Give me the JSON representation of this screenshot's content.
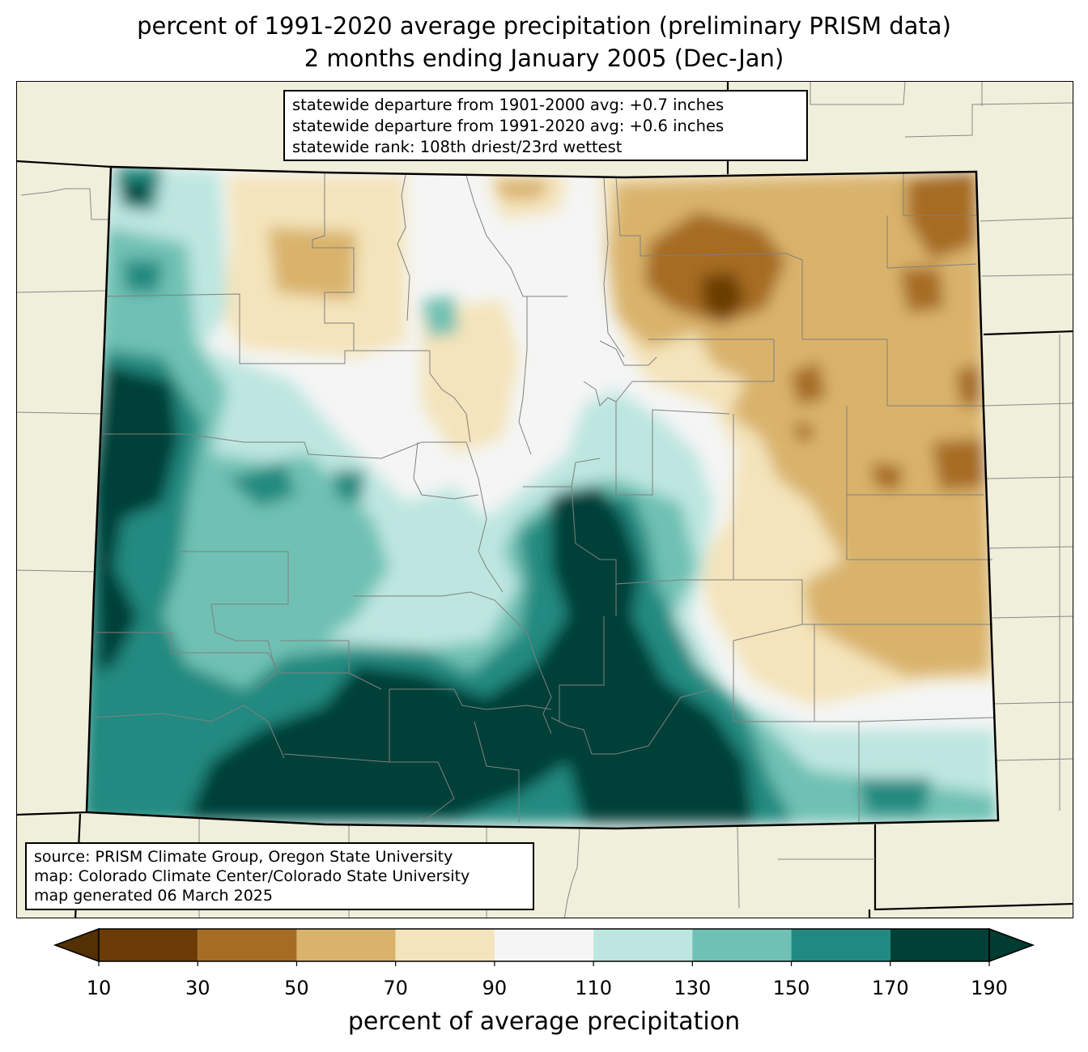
{
  "title": {
    "line1": "percent of 1991-2020 average precipitation (preliminary PRISM data)",
    "line2": "2 months ending January 2005 (Dec-Jan)"
  },
  "stats": {
    "line1": "statewide departure from 1901-2000 avg: +0.7 inches",
    "line2": "statewide departure from 1991-2020 avg: +0.6 inches",
    "line3": "statewide rank: 108th driest/23rd wettest"
  },
  "source": {
    "line1": "source: PRISM Climate Group, Oregon State University",
    "line2": "map: Colorado Climate Center/Colorado State University",
    "line3": "map generated 06 March 2025"
  },
  "colorbar": {
    "label": "percent of average precipitation",
    "ticks": [
      "10",
      "30",
      "50",
      "70",
      "90",
      "110",
      "130",
      "150",
      "170",
      "190"
    ],
    "colors": [
      "#6b3c06",
      "#a66c24",
      "#d9b36c",
      "#f4e4bb",
      "#f4f5f4",
      "#bde6e0",
      "#6fc1b4",
      "#218a80",
      "#004137"
    ],
    "under_color": "#543005",
    "over_color": "#003c30"
  },
  "map": {
    "background_color": "#f0efdb",
    "state_border_color": "#000000",
    "county_line_color": "#808080"
  }
}
